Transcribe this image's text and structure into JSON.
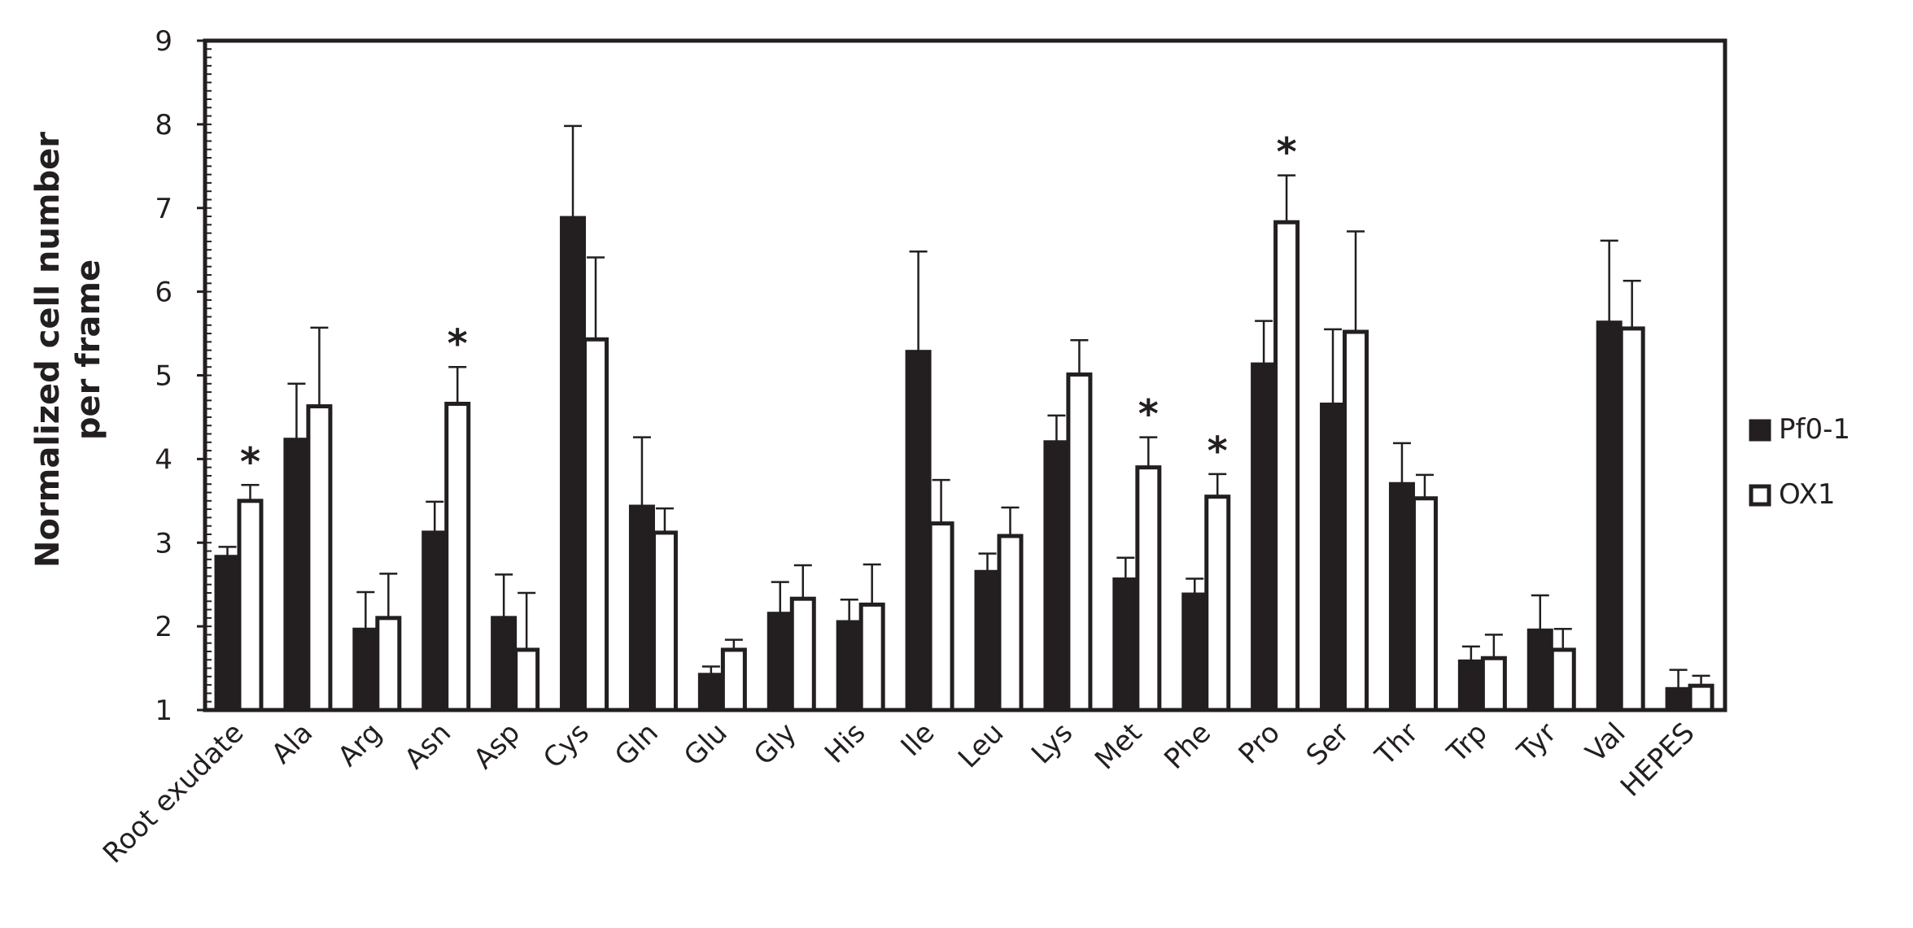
{
  "chart_data": {
    "type": "bar",
    "ylabel_lines": [
      "Normalized cell number",
      "per frame"
    ],
    "ylim": [
      1,
      9
    ],
    "yticks": [
      "1",
      "2",
      "3",
      "4",
      "5",
      "6",
      "7",
      "8",
      "9"
    ],
    "categories": [
      "Root exudate",
      "Ala",
      "Arg",
      "Asn",
      "Asp",
      "Cys",
      "Gln",
      "Glu",
      "Gly",
      "His",
      "Ile",
      "Leu",
      "Lys",
      "Met",
      "Phe",
      "Pro",
      "Ser",
      "Thr",
      "Trp",
      "Tyr",
      "Val",
      "HEPES"
    ],
    "series": [
      {
        "name": "Pf0-1",
        "fill": "#231f20",
        "values": [
          2.83,
          4.23,
          1.96,
          3.12,
          2.1,
          6.88,
          3.43,
          1.42,
          2.15,
          2.05,
          5.28,
          2.65,
          4.2,
          2.56,
          2.38,
          5.13,
          4.65,
          3.7,
          1.58,
          1.95,
          5.63,
          1.25
        ],
        "errors": [
          0.12,
          0.67,
          0.45,
          0.37,
          0.52,
          1.1,
          0.83,
          0.1,
          0.38,
          0.27,
          1.2,
          0.22,
          0.32,
          0.26,
          0.19,
          0.52,
          0.9,
          0.49,
          0.18,
          0.42,
          0.98,
          0.23
        ]
      },
      {
        "name": "OX1",
        "fill": "#ffffff",
        "values": [
          3.5,
          4.63,
          2.1,
          4.66,
          1.72,
          5.43,
          3.12,
          1.72,
          2.33,
          2.26,
          3.23,
          3.08,
          5.01,
          3.9,
          3.55,
          6.83,
          5.52,
          3.53,
          1.62,
          1.72,
          5.56,
          1.29
        ],
        "errors": [
          0.19,
          0.94,
          0.53,
          0.44,
          0.68,
          0.98,
          0.29,
          0.12,
          0.4,
          0.48,
          0.52,
          0.34,
          0.41,
          0.36,
          0.27,
          0.56,
          1.2,
          0.28,
          0.28,
          0.25,
          0.57,
          0.12
        ]
      }
    ],
    "annotations": [
      {
        "category": "Root exudate",
        "text": "*"
      },
      {
        "category": "Asn",
        "text": "*"
      },
      {
        "category": "Met",
        "text": "*"
      },
      {
        "category": "Phe",
        "text": "*"
      },
      {
        "category": "Pro",
        "text": "*"
      }
    ],
    "legend_position": "right",
    "grid": false
  }
}
